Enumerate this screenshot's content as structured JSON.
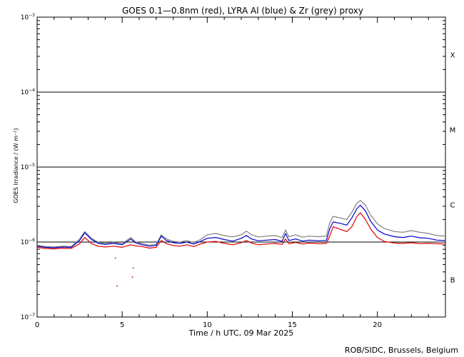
{
  "chart_data": {
    "type": "line",
    "title": "GOES 0.1—0.8nm (red), LYRA Al (blue) & Zr (grey) proxy",
    "xlabel": "Time / h UTC, 09 Mar 2025",
    "ylabel": "GOES Irradiance / (W m⁻²)",
    "xlim": [
      0,
      24
    ],
    "ylim": [
      1e-07,
      0.001
    ],
    "yscale": "log",
    "x_ticks": [
      0,
      5,
      10,
      15,
      20
    ],
    "x_tick_labels": [
      "0",
      "5",
      "10",
      "15",
      "20"
    ],
    "y_ticks": [
      {
        "base": "10",
        "exp": "−7",
        "value": 1e-07
      },
      {
        "base": "10",
        "exp": "−6",
        "value": 1e-06
      },
      {
        "base": "10",
        "exp": "−5",
        "value": 1e-05
      },
      {
        "base": "10",
        "exp": "−4",
        "value": 0.0001
      },
      {
        "base": "10",
        "exp": "−3",
        "value": 0.001
      }
    ],
    "flare_thresholds": [
      1e-06,
      1e-05,
      0.0001
    ],
    "flare_classes": [
      {
        "label": "X",
        "value": 0.000316
      },
      {
        "label": "M",
        "value": 3.16e-05
      },
      {
        "label": "C",
        "value": 3.16e-06
      },
      {
        "label": "B",
        "value": 3.16e-07
      }
    ],
    "grid": false,
    "legend": "none",
    "series": [
      {
        "color": "#dd0000",
        "points": [
          [
            0,
            8.5e-07
          ],
          [
            0.5,
            8.2e-07
          ],
          [
            1,
            8.1e-07
          ],
          [
            1.5,
            8.3e-07
          ],
          [
            2,
            8.2e-07
          ],
          [
            2.5,
            9.5e-07
          ],
          [
            2.8,
            1.15e-06
          ],
          [
            3.2,
            9.5e-07
          ],
          [
            3.6,
            8.8e-07
          ],
          [
            4,
            8.6e-07
          ],
          [
            4.5,
            8.8e-07
          ],
          [
            5,
            8.5e-07
          ],
          [
            5.5,
            9.2e-07
          ],
          [
            5.8,
            8.9e-07
          ],
          [
            6.2,
            8.7e-07
          ],
          [
            6.6,
            8.3e-07
          ],
          [
            7,
            8.5e-07
          ],
          [
            7.3,
            1.05e-06
          ],
          [
            7.6,
            9.5e-07
          ],
          [
            8,
            9e-07
          ],
          [
            8.4,
            8.8e-07
          ],
          [
            8.8,
            9.2e-07
          ],
          [
            9.2,
            8.7e-07
          ],
          [
            9.6,
            9.4e-07
          ],
          [
            10,
            1e-06
          ],
          [
            10.5,
            1.02e-06
          ],
          [
            11,
            9.6e-07
          ],
          [
            11.5,
            9.2e-07
          ],
          [
            12,
            9.8e-07
          ],
          [
            12.3,
            1.05e-06
          ],
          [
            12.6,
            9.7e-07
          ],
          [
            13,
            9.2e-07
          ],
          [
            13.5,
            9.4e-07
          ],
          [
            14,
            9.6e-07
          ],
          [
            14.4,
            9.3e-07
          ],
          [
            14.6,
            1.1e-06
          ],
          [
            14.8,
            9.5e-07
          ],
          [
            15.2,
            9.9e-07
          ],
          [
            15.6,
            9.4e-07
          ],
          [
            16,
            9.7e-07
          ],
          [
            16.5,
            9.5e-07
          ],
          [
            17,
            9.6e-07
          ],
          [
            17.2,
            1.2e-06
          ],
          [
            17.4,
            1.6e-06
          ],
          [
            17.8,
            1.48e-06
          ],
          [
            18.2,
            1.38e-06
          ],
          [
            18.5,
            1.6e-06
          ],
          [
            18.8,
            2.2e-06
          ],
          [
            19.0,
            2.45e-06
          ],
          [
            19.3,
            2e-06
          ],
          [
            19.6,
            1.5e-06
          ],
          [
            20,
            1.15e-06
          ],
          [
            20.4,
            1.02e-06
          ],
          [
            21,
            9.7e-07
          ],
          [
            21.5,
            9.6e-07
          ],
          [
            22,
            9.8e-07
          ],
          [
            22.5,
            9.5e-07
          ],
          [
            23,
            9.6e-07
          ],
          [
            23.5,
            9.5e-07
          ],
          [
            24,
            9.4e-07
          ]
        ]
      },
      {
        "color": "#0000cc",
        "points": [
          [
            0,
            8.8e-07
          ],
          [
            0.5,
            8.5e-07
          ],
          [
            1,
            8.4e-07
          ],
          [
            1.5,
            8.6e-07
          ],
          [
            2,
            8.5e-07
          ],
          [
            2.5,
            1.05e-06
          ],
          [
            2.8,
            1.33e-06
          ],
          [
            3.2,
            1.08e-06
          ],
          [
            3.6,
            9.6e-07
          ],
          [
            4,
            9.3e-07
          ],
          [
            4.5,
            9.6e-07
          ],
          [
            5,
            9.2e-07
          ],
          [
            5.5,
            1.1e-06
          ],
          [
            5.8,
            9.7e-07
          ],
          [
            6.2,
            9.2e-07
          ],
          [
            6.6,
            8.8e-07
          ],
          [
            7,
            9e-07
          ],
          [
            7.3,
            1.2e-06
          ],
          [
            7.6,
            1.05e-06
          ],
          [
            8,
            9.8e-07
          ],
          [
            8.4,
            9.6e-07
          ],
          [
            8.8,
            1e-06
          ],
          [
            9.2,
            9.4e-07
          ],
          [
            9.6,
            1.02e-06
          ],
          [
            10,
            1.12e-06
          ],
          [
            10.5,
            1.15e-06
          ],
          [
            11,
            1.08e-06
          ],
          [
            11.5,
            1.03e-06
          ],
          [
            12,
            1.12e-06
          ],
          [
            12.3,
            1.22e-06
          ],
          [
            12.6,
            1.1e-06
          ],
          [
            13,
            1.04e-06
          ],
          [
            13.5,
            1.06e-06
          ],
          [
            14,
            1.08e-06
          ],
          [
            14.4,
            1.02e-06
          ],
          [
            14.6,
            1.3e-06
          ],
          [
            14.8,
            1.05e-06
          ],
          [
            15.2,
            1.1e-06
          ],
          [
            15.6,
            1.03e-06
          ],
          [
            16,
            1.06e-06
          ],
          [
            16.5,
            1.04e-06
          ],
          [
            17,
            1.05e-06
          ],
          [
            17.2,
            1.5e-06
          ],
          [
            17.4,
            1.85e-06
          ],
          [
            17.8,
            1.78e-06
          ],
          [
            18.2,
            1.68e-06
          ],
          [
            18.5,
            2.1e-06
          ],
          [
            18.8,
            2.8e-06
          ],
          [
            19.0,
            3.1e-06
          ],
          [
            19.3,
            2.6e-06
          ],
          [
            19.6,
            1.9e-06
          ],
          [
            20,
            1.45e-06
          ],
          [
            20.4,
            1.28e-06
          ],
          [
            21,
            1.18e-06
          ],
          [
            21.5,
            1.15e-06
          ],
          [
            22,
            1.2e-06
          ],
          [
            22.5,
            1.14e-06
          ],
          [
            23,
            1.12e-06
          ],
          [
            23.5,
            1.06e-06
          ],
          [
            24,
            1.05e-06
          ]
        ]
      },
      {
        "color": "#808080",
        "points": [
          [
            0,
            9e-07
          ],
          [
            0.5,
            8.7e-07
          ],
          [
            1,
            8.6e-07
          ],
          [
            1.5,
            8.8e-07
          ],
          [
            2,
            8.7e-07
          ],
          [
            2.5,
            1.1e-06
          ],
          [
            2.8,
            1.38e-06
          ],
          [
            3.2,
            1.12e-06
          ],
          [
            3.6,
            9.9e-07
          ],
          [
            4,
            9.6e-07
          ],
          [
            4.5,
            9.9e-07
          ],
          [
            5,
            9.5e-07
          ],
          [
            5.5,
            1.15e-06
          ],
          [
            5.8,
            1e-06
          ],
          [
            6.2,
            9.5e-07
          ],
          [
            6.6,
            9.1e-07
          ],
          [
            7,
            9.3e-07
          ],
          [
            7.3,
            1.25e-06
          ],
          [
            7.6,
            1.1e-06
          ],
          [
            8,
            1.02e-06
          ],
          [
            8.4,
            1e-06
          ],
          [
            8.8,
            1.05e-06
          ],
          [
            9.2,
            9.8e-07
          ],
          [
            9.6,
            1.08e-06
          ],
          [
            10,
            1.25e-06
          ],
          [
            10.5,
            1.3e-06
          ],
          [
            11,
            1.22e-06
          ],
          [
            11.5,
            1.17e-06
          ],
          [
            12,
            1.25e-06
          ],
          [
            12.3,
            1.4e-06
          ],
          [
            12.6,
            1.25e-06
          ],
          [
            13,
            1.17e-06
          ],
          [
            13.5,
            1.2e-06
          ],
          [
            14,
            1.22e-06
          ],
          [
            14.4,
            1.15e-06
          ],
          [
            14.6,
            1.45e-06
          ],
          [
            14.8,
            1.18e-06
          ],
          [
            15.2,
            1.25e-06
          ],
          [
            15.6,
            1.16e-06
          ],
          [
            16,
            1.2e-06
          ],
          [
            16.5,
            1.18e-06
          ],
          [
            17,
            1.2e-06
          ],
          [
            17.2,
            1.8e-06
          ],
          [
            17.4,
            2.2e-06
          ],
          [
            17.8,
            2.1e-06
          ],
          [
            18.2,
            2e-06
          ],
          [
            18.5,
            2.5e-06
          ],
          [
            18.8,
            3.3e-06
          ],
          [
            19.0,
            3.6e-06
          ],
          [
            19.3,
            3.1e-06
          ],
          [
            19.6,
            2.3e-06
          ],
          [
            20,
            1.75e-06
          ],
          [
            20.4,
            1.52e-06
          ],
          [
            21,
            1.38e-06
          ],
          [
            21.5,
            1.35e-06
          ],
          [
            22,
            1.42e-06
          ],
          [
            22.5,
            1.35e-06
          ],
          [
            23,
            1.3e-06
          ],
          [
            23.5,
            1.22e-06
          ],
          [
            24,
            1.2e-06
          ]
        ]
      }
    ],
    "red_outliers": [
      [
        4.7,
        2.6e-07
      ],
      [
        5.6,
        3.4e-07
      ],
      [
        5.65,
        4.5e-07
      ],
      [
        4.6,
        6.1e-07
      ]
    ]
  },
  "footer": {
    "credit": "ROB/SIDC, Brussels, Belgium"
  }
}
